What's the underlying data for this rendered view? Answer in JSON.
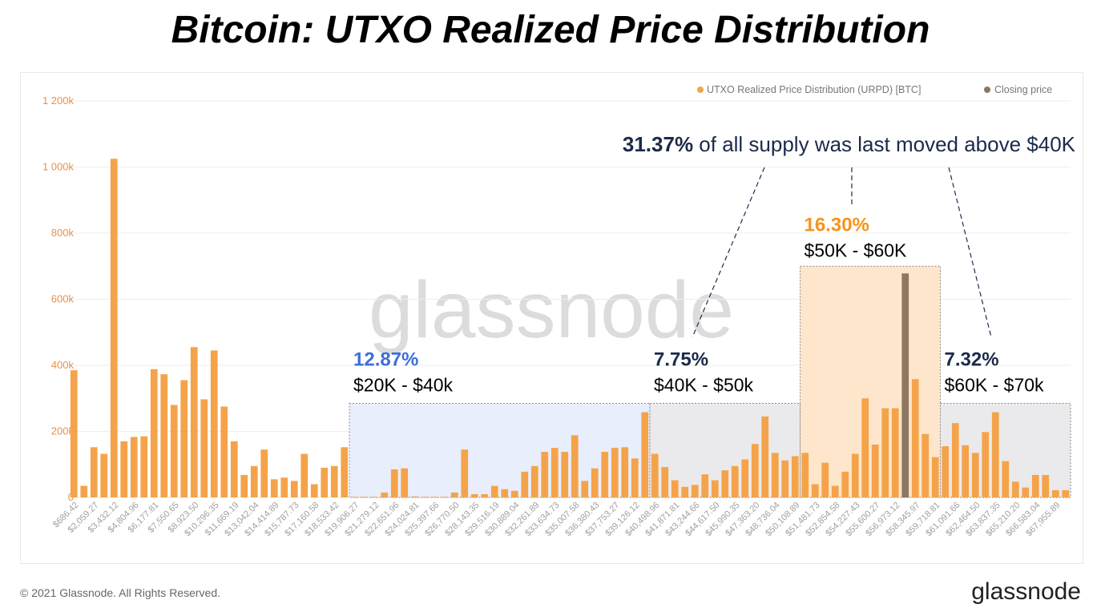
{
  "title": "Bitcoin: UTXO Realized Price Distribution",
  "footer": {
    "copyright": "© 2021 Glassnode. All Rights Reserved.",
    "logo": "glassnode"
  },
  "watermark": "glassnode",
  "colors": {
    "bar": "#f5a34a",
    "closing": "#8d7760",
    "blue_region": "#e8eefc",
    "gray_region": "#eaeaec",
    "orange_region": "#fde6cb",
    "navy_text": "#1b2a4a",
    "blue_text": "#3e6fd8",
    "orange_text": "#f7931a",
    "axis_label": "#e8914b",
    "tick_label": "#a0a0a0"
  },
  "chart_data": {
    "type": "bar",
    "legend": {
      "position": "top-right",
      "items": [
        {
          "name": "UTXO Realized Price Distribution (URPD) [BTC]",
          "color": "#f5a34a"
        },
        {
          "name": "Closing price",
          "color": "#8d7760"
        }
      ]
    },
    "ylim": [
      0,
      1200000
    ],
    "yticks": [
      {
        "value": 0,
        "label": "0"
      },
      {
        "value": 200000,
        "label": "200k"
      },
      {
        "value": 400000,
        "label": "400k"
      },
      {
        "value": 600000,
        "label": "600k"
      },
      {
        "value": 800000,
        "label": "800k"
      },
      {
        "value": 1000000,
        "label": "1 000k"
      },
      {
        "value": 1200000,
        "label": "1 200k"
      }
    ],
    "xticks": [
      "$686.42",
      "$2,059.27",
      "$3,432.12",
      "$4,804.96",
      "$6,177.81",
      "$7,550.65",
      "$8,923.50",
      "$10,296.35",
      "$11,669.19",
      "$13,042.04",
      "$14,414.89",
      "$15,787.73",
      "$17,160.58",
      "$18,533.42",
      "$19,906.27",
      "$21,279.12",
      "$22,651.96",
      "$24,024.81",
      "$25,397.66",
      "$26,770.50",
      "$28,143.35",
      "$29,516.19",
      "$30,889.04",
      "$32,261.89",
      "$33,634.73",
      "$35,007.58",
      "$36,380.43",
      "$37,753.27",
      "$39,126.12",
      "$40,498.96",
      "$41,871.81",
      "$43,244.66",
      "$44,617.50",
      "$45,990.35",
      "$47,363.20",
      "$48,736.04",
      "$50,108.89",
      "$51,481.73",
      "$52,854.58",
      "$54,227.43",
      "$55,600.27",
      "$56,973.12",
      "$58,345.97",
      "$59,718.81",
      "$61,091.66",
      "$62,464.50",
      "$63,837.35",
      "$65,210.20",
      "$66,583.04",
      "$67,955.89"
    ],
    "values": [
      385000,
      35000,
      152000,
      132000,
      1025000,
      170000,
      183000,
      185000,
      388000,
      373000,
      280000,
      355000,
      455000,
      297000,
      445000,
      275000,
      170000,
      68000,
      95000,
      145000,
      55000,
      60000,
      50000,
      132000,
      40000,
      90000,
      95000,
      152000,
      2000,
      2000,
      2000,
      15000,
      85000,
      88000,
      3000,
      2000,
      2000,
      2000,
      15000,
      145000,
      10000,
      10000,
      35000,
      25000,
      20000,
      78000,
      95000,
      138000,
      150000,
      138000,
      188000,
      50000,
      88000,
      138000,
      150000,
      152000,
      118000,
      258000,
      132000,
      92000,
      52000,
      32000,
      38000,
      70000,
      52000,
      82000,
      95000,
      115000,
      162000,
      245000,
      135000,
      112000,
      125000,
      135000,
      40000,
      105000,
      35000,
      78000,
      132000,
      300000,
      160000,
      270000,
      270000,
      678000,
      358000,
      192000,
      122000,
      155000,
      225000,
      158000,
      135000,
      198000,
      258000,
      110000,
      48000,
      30000,
      68000,
      68000,
      22000,
      22000
    ],
    "closing_price_bar_index": 83,
    "regions": [
      {
        "label_pct": "12.87%",
        "label_range": "$20K - $40k",
        "start": 28,
        "end": 58,
        "ymax": 285000,
        "fill": "blue",
        "pct_color": "blue"
      },
      {
        "label_pct": "7.75%",
        "label_range": "$40K - $50k",
        "start": 58,
        "end": 73,
        "ymax": 285000,
        "fill": "gray",
        "pct_color": "navy"
      },
      {
        "label_pct": "16.30%",
        "label_range": "$50K - $60K",
        "start": 73,
        "end": 87,
        "ymax": 700000,
        "fill": "orange",
        "pct_color": "orange"
      },
      {
        "label_pct": "7.32%",
        "label_range": "$60K - $70k",
        "start": 87,
        "end": 100,
        "ymax": 285000,
        "fill": "gray",
        "pct_color": "navy"
      }
    ],
    "annotation": {
      "bold": "31.37%",
      "text": " of all supply was last moved above $40K"
    }
  }
}
